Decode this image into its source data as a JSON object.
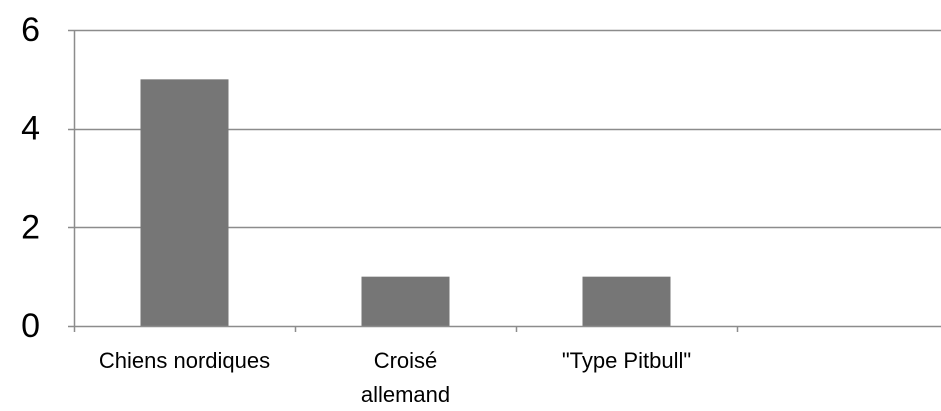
{
  "chart_data": {
    "type": "bar",
    "categories": [
      "Chiens nordiques",
      "Croisé\nallemand",
      "\"Type Pitbull\"",
      ""
    ],
    "values": [
      5,
      1,
      1,
      null
    ],
    "title": "",
    "xlabel": "",
    "ylabel": "",
    "ylim": [
      0,
      6
    ],
    "yticks": [
      "0",
      "2",
      "4",
      "6"
    ],
    "grid": true,
    "legend": "none",
    "bar_color": "#767676",
    "gridline_color": "#8c8c8c",
    "axis_color": "#8c8c8c",
    "text_color": "#000000"
  }
}
